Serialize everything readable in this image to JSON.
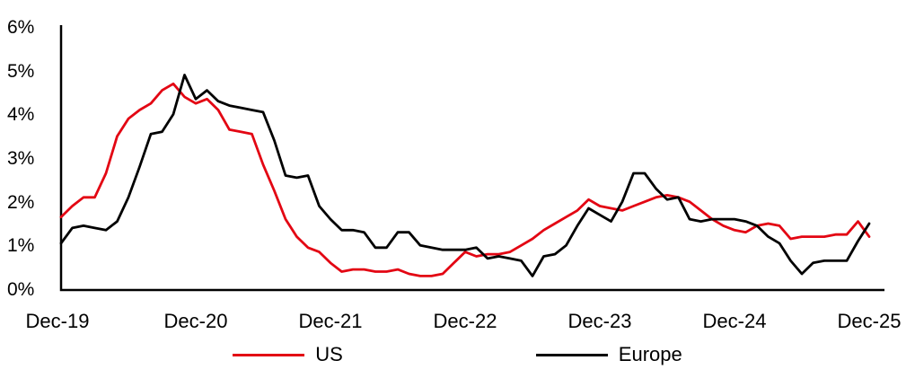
{
  "chart_data": {
    "type": "line",
    "title": "",
    "xlabel": "",
    "ylabel": "",
    "ylim": [
      0,
      6
    ],
    "y_unit": "percent",
    "grid": false,
    "legend_position": "bottom-center",
    "axis_color": "#000000",
    "y_tick_labels": [
      "6%",
      "5%",
      "4%",
      "3%",
      "2%",
      "1%",
      "0%"
    ],
    "x_tick_labels": [
      "Dec-19",
      "Dec-20",
      "Dec-21",
      "Dec-22",
      "Dec-23",
      "Dec-24",
      "Dec-25"
    ],
    "x": [
      "Dec-19",
      "Jan-20",
      "Feb-20",
      "Mar-20",
      "Apr-20",
      "May-20",
      "Jun-20",
      "Jul-20",
      "Aug-20",
      "Sep-20",
      "Oct-20",
      "Nov-20",
      "Dec-20",
      "Jan-21",
      "Feb-21",
      "Mar-21",
      "Apr-21",
      "May-21",
      "Jun-21",
      "Jul-21",
      "Aug-21",
      "Sep-21",
      "Oct-21",
      "Nov-21",
      "Dec-21",
      "Jan-22",
      "Feb-22",
      "Mar-22",
      "Apr-22",
      "May-22",
      "Jun-22",
      "Jul-22",
      "Aug-22",
      "Sep-22",
      "Oct-22",
      "Nov-22",
      "Dec-22",
      "Jan-23",
      "Feb-23",
      "Mar-23",
      "Apr-23",
      "May-23",
      "Jun-23",
      "Jul-23",
      "Aug-23",
      "Sep-23",
      "Oct-23",
      "Nov-23",
      "Dec-23",
      "Jan-24",
      "Feb-24",
      "Mar-24",
      "Apr-24",
      "May-24",
      "Jun-24",
      "Jul-24",
      "Aug-24",
      "Sep-24",
      "Oct-24",
      "Nov-24",
      "Dec-24",
      "Jan-25",
      "Feb-25",
      "Mar-25",
      "Apr-25",
      "May-25",
      "Jun-25",
      "Jul-25",
      "Aug-25",
      "Sep-25",
      "Oct-25",
      "Nov-25",
      "Dec-25"
    ],
    "series": [
      {
        "name": "US",
        "color": "#e30613",
        "values": [
          1.65,
          1.9,
          2.1,
          2.1,
          2.65,
          3.5,
          3.9,
          4.1,
          4.25,
          4.55,
          4.7,
          4.4,
          4.25,
          4.35,
          4.1,
          3.65,
          3.6,
          3.55,
          2.85,
          2.25,
          1.6,
          1.2,
          0.95,
          0.85,
          0.6,
          0.4,
          0.45,
          0.45,
          0.4,
          0.4,
          0.45,
          0.35,
          0.3,
          0.3,
          0.35,
          0.6,
          0.85,
          0.75,
          0.8,
          0.8,
          0.85,
          1.0,
          1.15,
          1.35,
          1.5,
          1.65,
          1.8,
          2.05,
          1.9,
          1.85,
          1.8,
          1.9,
          2.0,
          2.1,
          2.15,
          2.1,
          2.0,
          1.8,
          1.6,
          1.45,
          1.35,
          1.3,
          1.45,
          1.5,
          1.45,
          1.15,
          1.2,
          1.2,
          1.2,
          1.25,
          1.25,
          1.55,
          1.2
        ]
      },
      {
        "name": "Europe",
        "color": "#000000",
        "values": [
          1.05,
          1.4,
          1.45,
          1.4,
          1.35,
          1.55,
          2.1,
          2.8,
          3.55,
          3.6,
          4.0,
          4.9,
          4.35,
          4.55,
          4.3,
          4.2,
          4.15,
          4.1,
          4.05,
          3.4,
          2.6,
          2.55,
          2.6,
          1.9,
          1.6,
          1.35,
          1.35,
          1.3,
          0.95,
          0.95,
          1.3,
          1.3,
          1.0,
          0.95,
          0.9,
          0.9,
          0.9,
          0.95,
          0.7,
          0.75,
          0.7,
          0.65,
          0.3,
          0.75,
          0.8,
          1.0,
          1.45,
          1.85,
          1.7,
          1.55,
          2.0,
          2.65,
          2.65,
          2.3,
          2.05,
          2.1,
          1.6,
          1.55,
          1.6,
          1.6,
          1.6,
          1.55,
          1.45,
          1.2,
          1.05,
          0.65,
          0.35,
          0.6,
          0.65,
          0.65,
          0.65,
          1.1,
          1.5
        ]
      }
    ]
  }
}
